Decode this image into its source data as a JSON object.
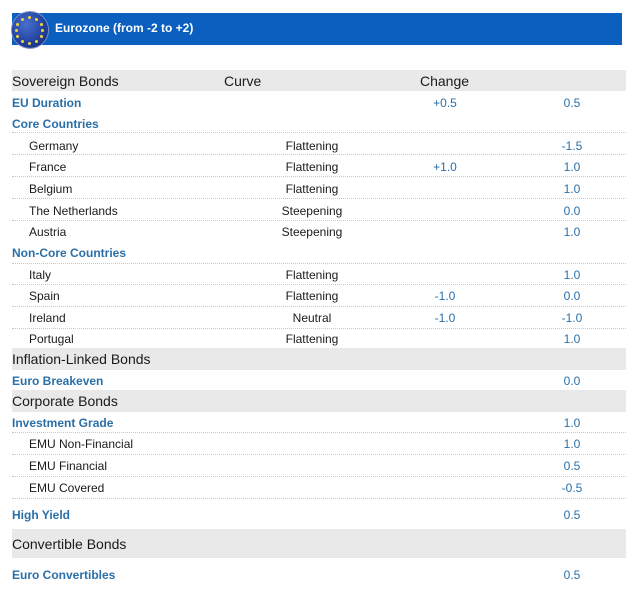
{
  "banner": {
    "title": "Eurozone (from -2 to +2)",
    "bg_color": "#0a5fbf"
  },
  "header": {
    "col1": "Sovereign Bonds",
    "col2": "Curve",
    "col3": "Change"
  },
  "rows": [
    {
      "name": "EU Duration",
      "change": "+0.5",
      "view": "0.5"
    },
    {
      "name": "Core Countries"
    },
    {
      "name": "Germany",
      "curve": "Flattening",
      "view": "-1.5"
    },
    {
      "name": "France",
      "curve": "Flattening",
      "change": "+1.0",
      "view": "1.0"
    },
    {
      "name": "Belgium",
      "curve": "Flattening",
      "view": "1.0"
    },
    {
      "name": "The Netherlands",
      "curve": "Steepening",
      "view": "0.0"
    },
    {
      "name": "Austria",
      "curve": "Steepening",
      "view": "1.0"
    },
    {
      "name": "Non-Core Countries"
    },
    {
      "name": "Italy",
      "curve": "Flattening",
      "view": "1.0"
    },
    {
      "name": "Spain",
      "curve": "Flattening",
      "change": "-1.0",
      "view": "0.0"
    },
    {
      "name": "Ireland",
      "curve": "Neutral",
      "change": "-1.0",
      "view": "-1.0"
    },
    {
      "name": "Portugal",
      "curve": "Flattening",
      "view": "1.0"
    },
    {
      "name": "Inflation-Linked Bonds"
    },
    {
      "name": "Euro Breakeven",
      "view": "0.0"
    },
    {
      "name": "Corporate Bonds"
    },
    {
      "name": "Investment Grade",
      "view": "1.0"
    },
    {
      "name": "EMU Non-Financial",
      "view": "1.0"
    },
    {
      "name": "EMU Financial",
      "view": "0.5"
    },
    {
      "name": "EMU Covered",
      "view": "-0.5"
    },
    {
      "name": "High Yield",
      "view": "0.5"
    },
    {
      "name": "Convertible Bonds"
    },
    {
      "name": "Euro Convertibles",
      "view": "0.5"
    }
  ]
}
